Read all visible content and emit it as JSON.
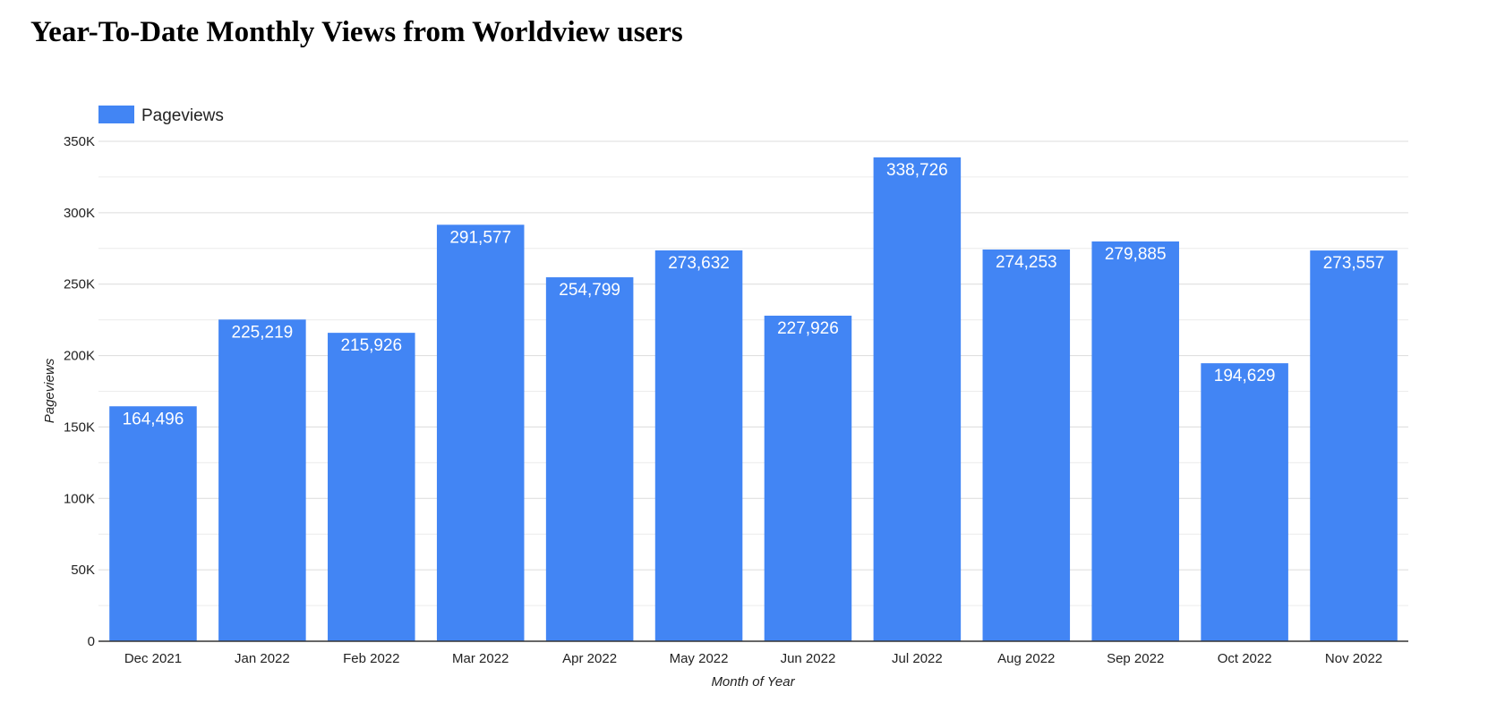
{
  "page": {
    "title": "Year-To-Date Monthly Views from Worldview users"
  },
  "chart_data": {
    "type": "bar",
    "categories": [
      "Dec 2021",
      "Jan 2022",
      "Feb 2022",
      "Mar 2022",
      "Apr 2022",
      "May 2022",
      "Jun 2022",
      "Jul 2022",
      "Aug 2022",
      "Sep 2022",
      "Oct 2022",
      "Nov 2022"
    ],
    "series": [
      {
        "name": "Pageviews",
        "color": "#4285f4",
        "values": [
          164496,
          225219,
          215926,
          291577,
          254799,
          273632,
          227926,
          338726,
          274253,
          279885,
          194629,
          273557
        ],
        "labels": [
          "164,496",
          "225,219",
          "215,926",
          "291,577",
          "254,799",
          "273,632",
          "227,926",
          "338,726",
          "274,253",
          "279,885",
          "194,629",
          "273,557"
        ]
      }
    ],
    "title": "Year-To-Date Monthly Views from Worldview users",
    "xlabel": "Month of Year",
    "ylabel": "Pageviews",
    "ylim": [
      0,
      350000
    ],
    "yticks": [
      0,
      50000,
      100000,
      150000,
      200000,
      250000,
      300000,
      350000
    ],
    "ytick_labels": [
      "0",
      "50K",
      "100K",
      "150K",
      "200K",
      "250K",
      "300K",
      "350K"
    ],
    "minor_gridlines": true,
    "grid": true,
    "legend_position": "top-left"
  }
}
